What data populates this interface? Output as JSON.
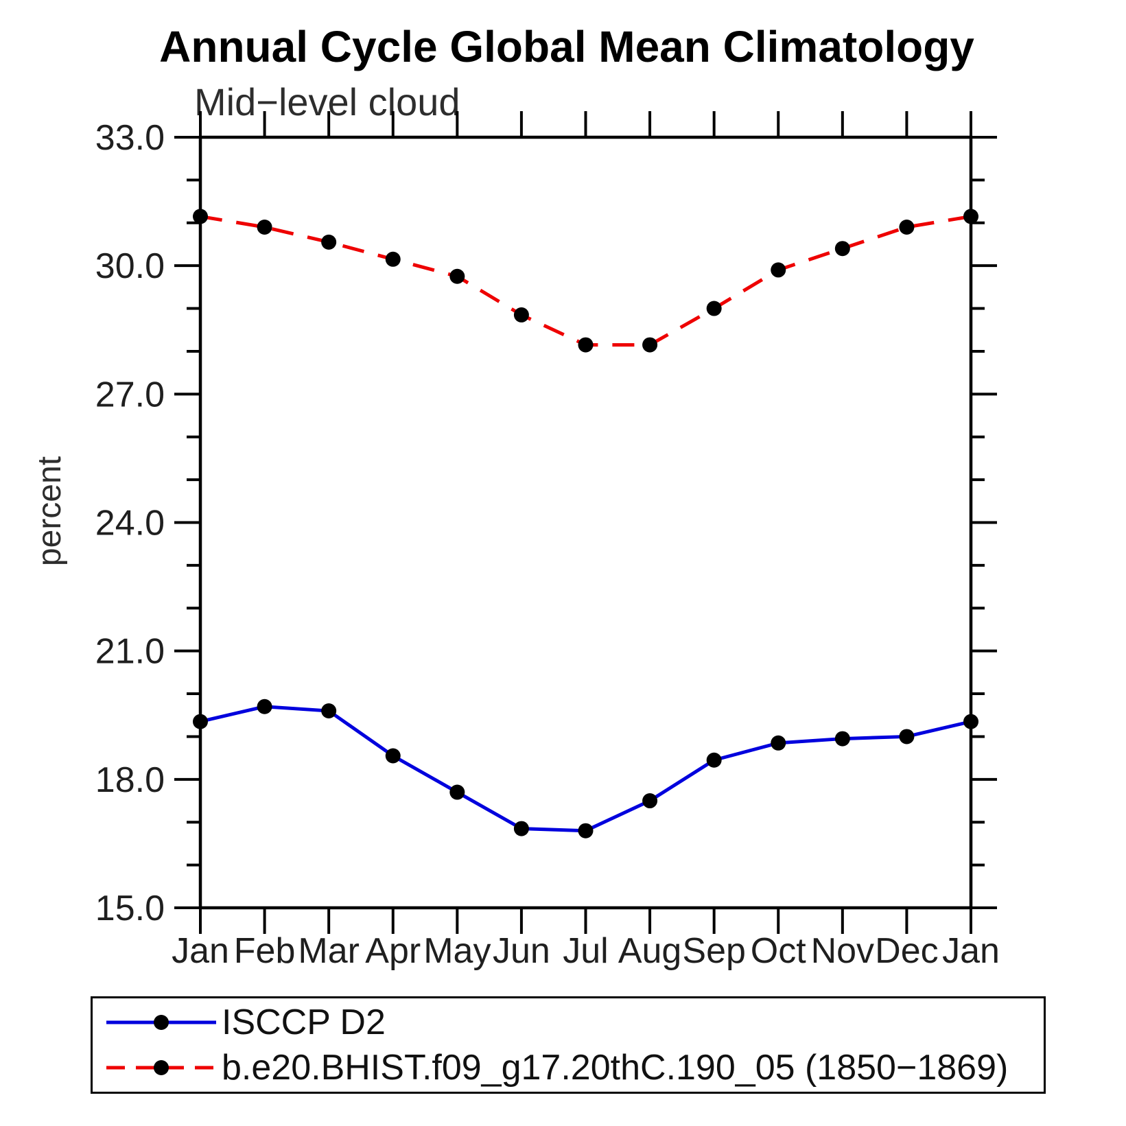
{
  "chart_data": {
    "type": "line",
    "title": "Annual Cycle Global Mean Climatology",
    "subtitle": "Mid−level cloud",
    "ylabel": "percent",
    "xlabel": "",
    "categories": [
      "Jan",
      "Feb",
      "Mar",
      "Apr",
      "May",
      "Jun",
      "Jul",
      "Aug",
      "Sep",
      "Oct",
      "Nov",
      "Dec",
      "Jan"
    ],
    "ylim": [
      15.0,
      33.0
    ],
    "y_major_ticks": [
      15.0,
      18.0,
      21.0,
      24.0,
      27.0,
      30.0,
      33.0
    ],
    "y_major_tick_labels": [
      "15.0",
      "18.0",
      "21.0",
      "24.0",
      "27.0",
      "30.0",
      "33.0"
    ],
    "y_minor_tick_interval": 1.0,
    "grid": false,
    "legend_position": "bottom-left",
    "axis_color": "#000000",
    "marker_color": "#000000",
    "series": [
      {
        "name": "ISCCP D2",
        "color": "#0000dd",
        "line_style": "solid",
        "marker": "filled-circle",
        "values": [
          19.35,
          19.7,
          19.6,
          18.55,
          17.7,
          16.85,
          16.8,
          17.5,
          18.45,
          18.85,
          18.95,
          19.0,
          19.35
        ]
      },
      {
        "name": "b.e20.BHIST.f09_g17.20thC.190_05 (1850−1869)",
        "color": "#ee0000",
        "line_style": "dashed",
        "marker": "filled-circle",
        "values": [
          31.15,
          30.9,
          30.55,
          30.15,
          29.75,
          28.85,
          28.15,
          28.15,
          29.0,
          29.9,
          30.4,
          30.9,
          31.15
        ]
      }
    ]
  }
}
